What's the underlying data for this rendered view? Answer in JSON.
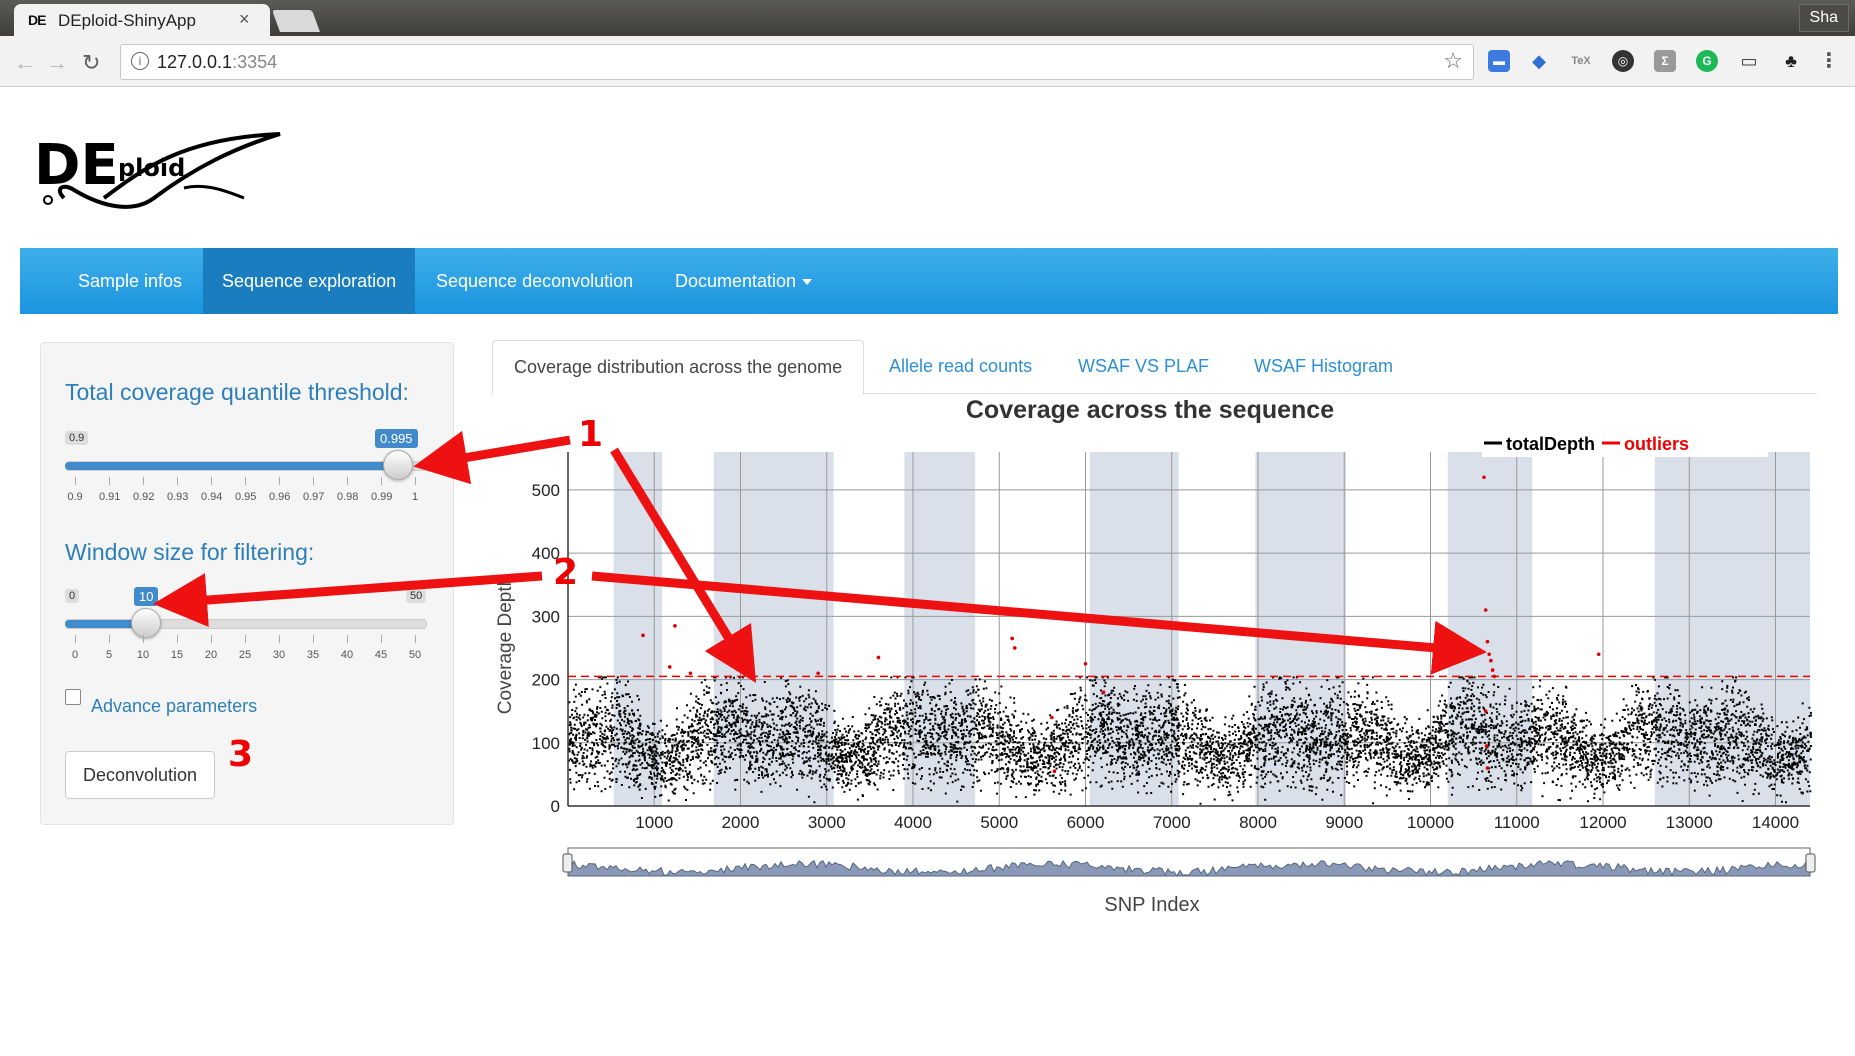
{
  "browser": {
    "tab_title": "DEploid-ShinyApp",
    "tab_favicon": "DE",
    "tab_close": "×",
    "profile": "Sha",
    "url_host": "127.0.0.1",
    "url_port": ":3354",
    "icons": [
      "back-arrow-icon",
      "forward-arrow-icon",
      "reload-icon",
      "info-icon",
      "star-icon"
    ]
  },
  "logo_text": {
    "big": "DE",
    "small": "ploid"
  },
  "navbar": {
    "items": [
      {
        "label": "Sample infos"
      },
      {
        "label": "Sequence exploration",
        "active": true
      },
      {
        "label": "Sequence deconvolution"
      },
      {
        "label": "Documentation"
      }
    ]
  },
  "sidebar": {
    "slider1": {
      "label": "Total coverage quantile threshold:",
      "min": "0.9",
      "value": "0.995",
      "value_fraction": 0.95,
      "ticks": [
        "0.9",
        "0.91",
        "0.92",
        "0.93",
        "0.94",
        "0.95",
        "0.96",
        "0.97",
        "0.98",
        "0.99",
        "1"
      ]
    },
    "slider2": {
      "label": "Window size for filtering:",
      "min": "0",
      "max": "50",
      "value": "10",
      "value_fraction": 0.2,
      "ticks": [
        "0",
        "5",
        "10",
        "15",
        "20",
        "25",
        "30",
        "35",
        "40",
        "45",
        "50"
      ]
    },
    "advance_label": "Advance parameters",
    "deconv_label": "Deconvolution"
  },
  "plot_tabs": [
    {
      "label": "Coverage distribution across the genome",
      "active": true
    },
    {
      "label": "Allele read counts"
    },
    {
      "label": "WSAF VS PLAF"
    },
    {
      "label": "WSAF Histogram"
    }
  ],
  "annotations": [
    "1",
    "2",
    "3"
  ],
  "colors": {
    "navbar": "#1c95e0",
    "active_nav": "#1a7dbf",
    "outlier": "#e00000",
    "arrow": "#ee1111",
    "band": "#d9e0ea"
  },
  "chart_data": {
    "type": "scatter",
    "title": "Coverage across the sequence",
    "xlabel": "SNP Index",
    "ylabel": "Coverage Depth",
    "xlim": [
      0,
      14400
    ],
    "ylim": [
      0,
      560
    ],
    "x_ticks": [
      "1000",
      "2000",
      "3000",
      "4000",
      "5000",
      "6000",
      "7000",
      "8000",
      "9000",
      "10000",
      "11000",
      "12000",
      "13000",
      "14000"
    ],
    "y_ticks": [
      "0",
      "100",
      "200",
      "300",
      "400",
      "500"
    ],
    "threshold": 205,
    "shaded_bands": [
      [
        530,
        1090
      ],
      [
        1690,
        3080
      ],
      [
        3900,
        4720
      ],
      [
        6050,
        7080
      ],
      [
        7970,
        9020
      ],
      [
        10200,
        11180
      ],
      [
        12600,
        14400
      ]
    ],
    "legend": {
      "position": "top-right",
      "series": [
        {
          "name": "totalDepth",
          "color": "#000000"
        },
        {
          "name": "outliers",
          "color": "#e00000"
        }
      ]
    },
    "outliers": [
      [
        870,
        270
      ],
      [
        1240,
        285
      ],
      [
        1180,
        220
      ],
      [
        1420,
        210
      ],
      [
        3600,
        235
      ],
      [
        5150,
        265
      ],
      [
        5180,
        250
      ],
      [
        6000,
        225
      ],
      [
        10620,
        520
      ],
      [
        10640,
        310
      ],
      [
        10660,
        260
      ],
      [
        10680,
        240
      ],
      [
        10700,
        230
      ],
      [
        10720,
        215
      ],
      [
        10740,
        205
      ],
      [
        11950,
        240
      ],
      [
        2900,
        210
      ],
      [
        5610,
        140
      ],
      [
        5640,
        55
      ],
      [
        6210,
        180
      ],
      [
        10640,
        150
      ],
      [
        10650,
        95
      ],
      [
        10660,
        60
      ]
    ],
    "notes": "totalDepth series: dense cloud of ~14000 points between 0 and ~210"
  }
}
